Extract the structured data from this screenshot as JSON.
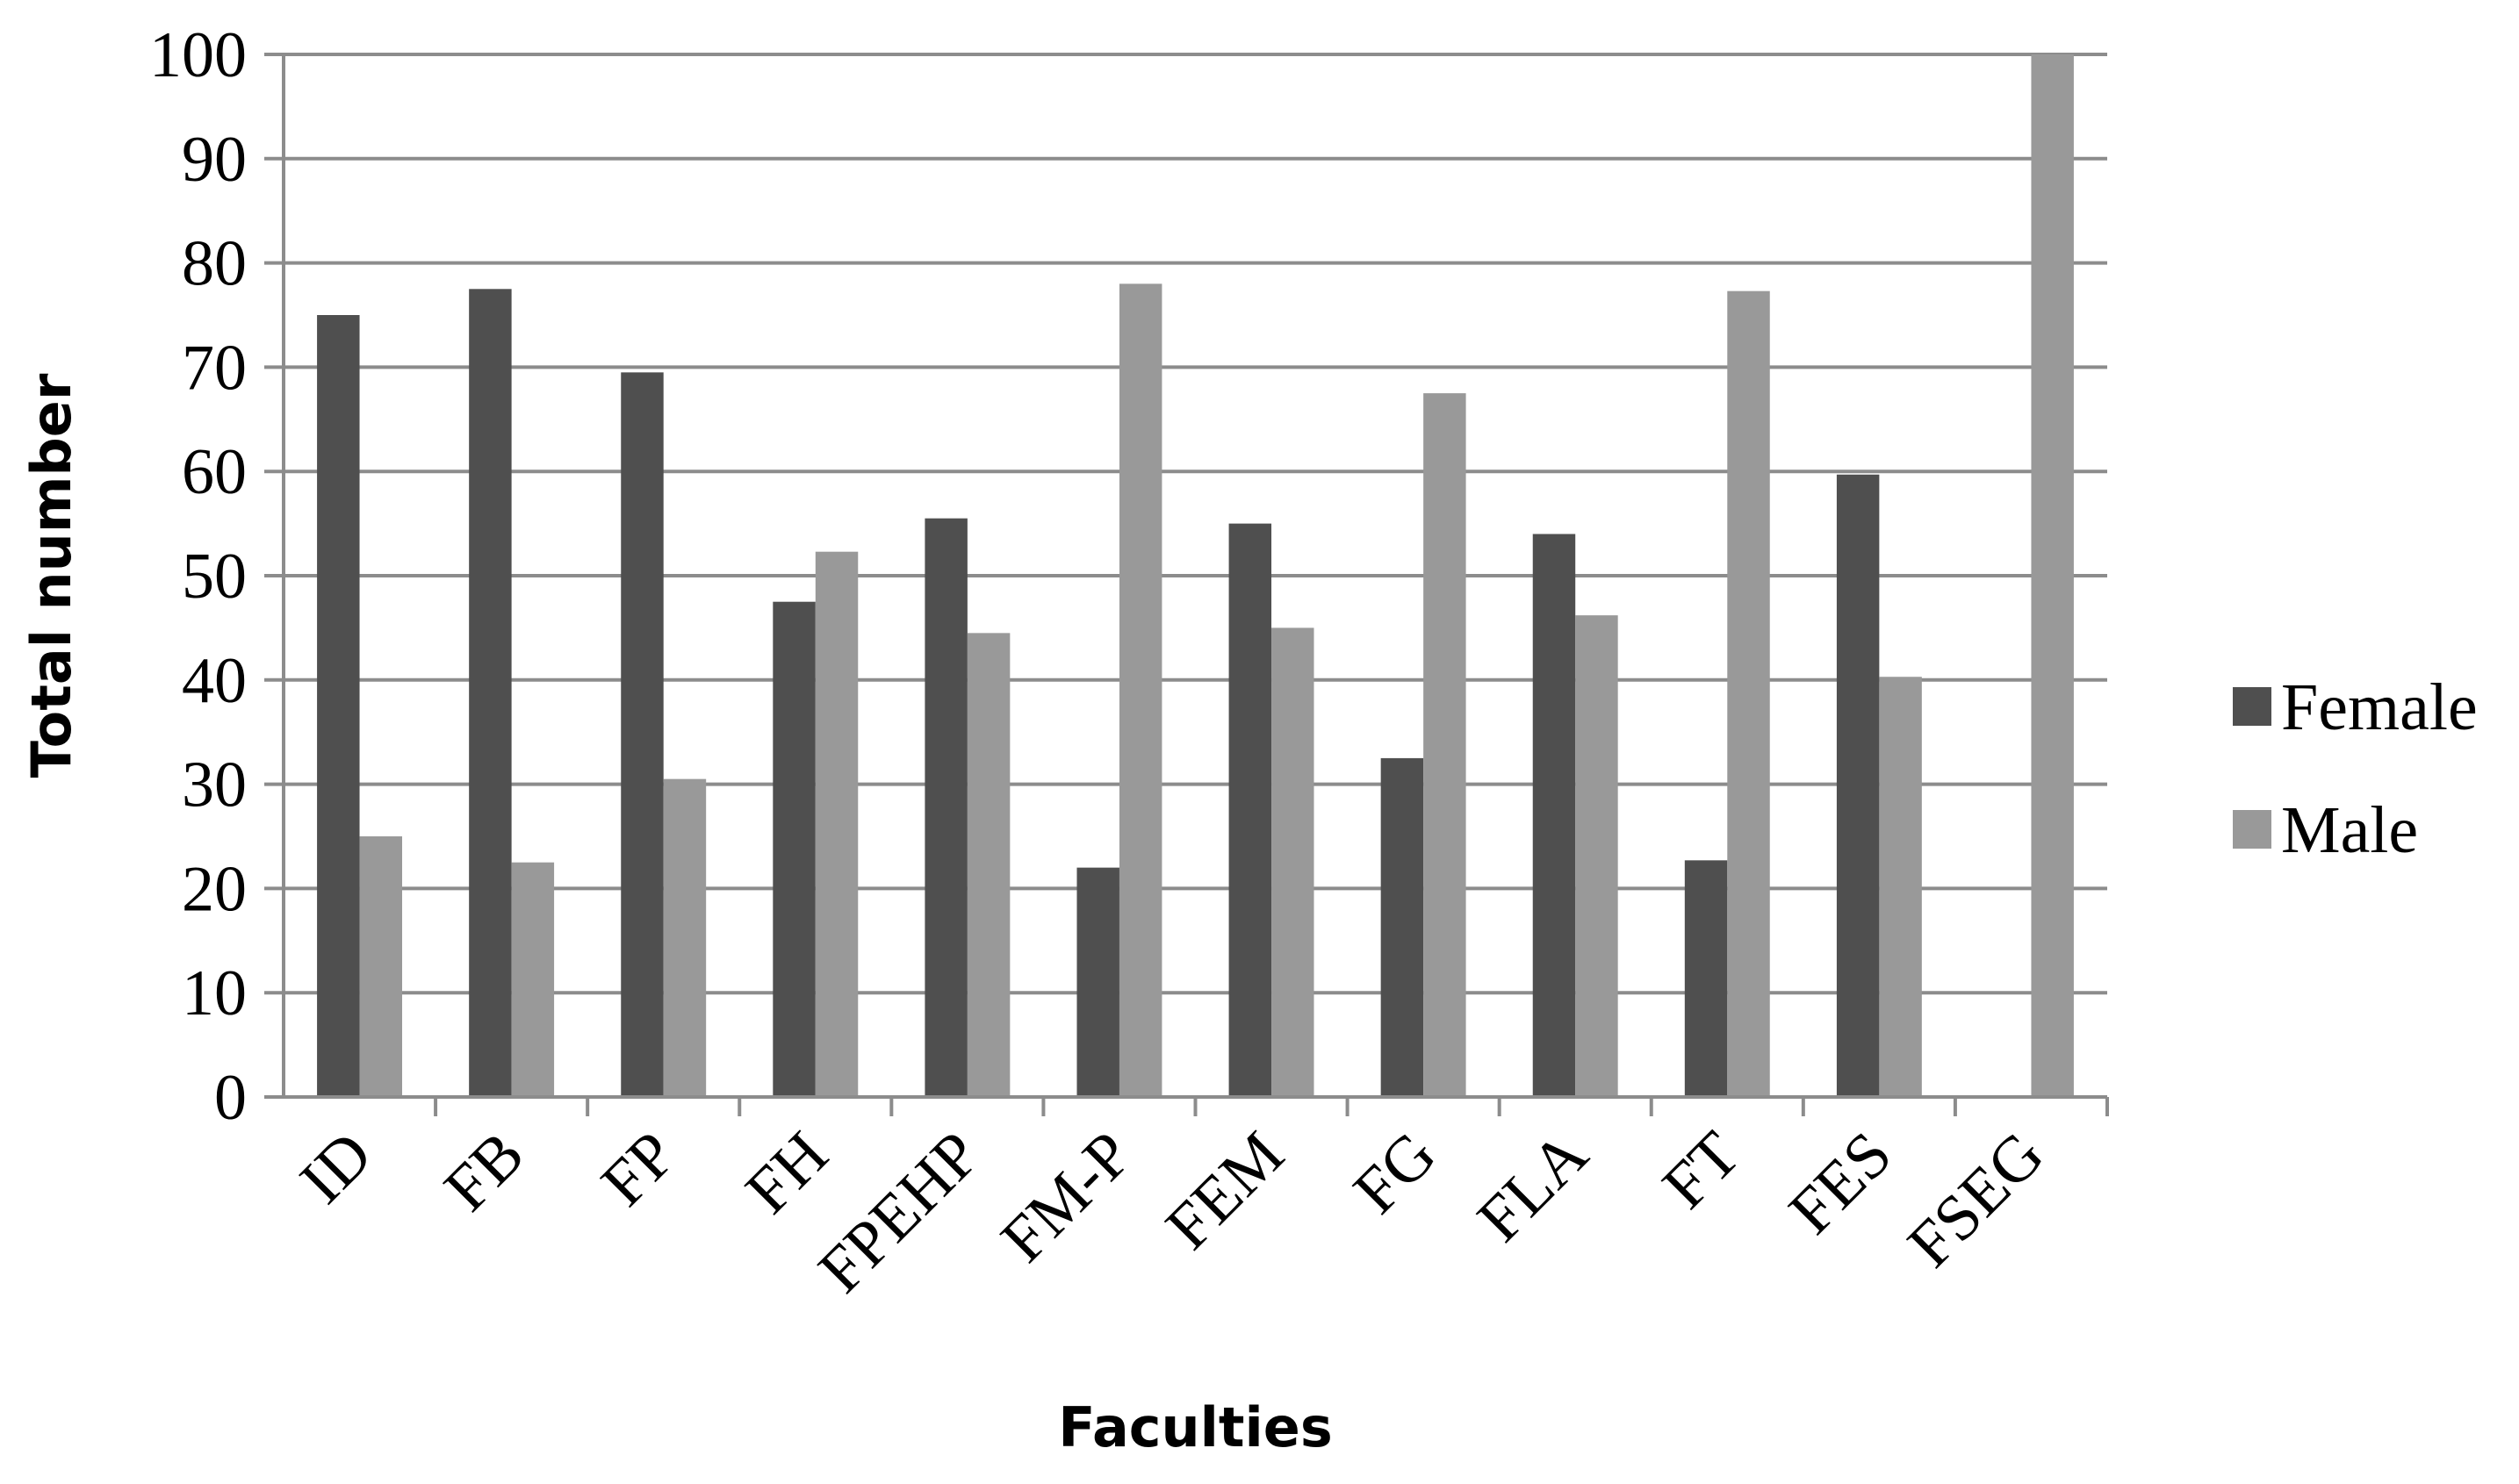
{
  "chart_data": {
    "type": "bar",
    "categories": [
      "ID",
      "FB",
      "FP",
      "FH",
      "FPEHP",
      "FM-P",
      "FEM",
      "FG",
      "FLA",
      "FT",
      "FES",
      "FSEG"
    ],
    "series": [
      {
        "name": "Female",
        "values": [
          75,
          77.5,
          69.5,
          47.5,
          55.5,
          22,
          55,
          32.5,
          54,
          22.7,
          59.7,
          0
        ],
        "color": "#4f4f4f"
      },
      {
        "name": "Male",
        "values": [
          25,
          22.5,
          30.5,
          52.3,
          44.5,
          78,
          45,
          67.5,
          46.2,
          77.3,
          40.3,
          100
        ],
        "color": "#999999"
      }
    ],
    "xlabel": "Faculties",
    "ylabel": "Total number",
    "ylim": [
      0,
      100
    ],
    "yticks": [
      "0",
      "10",
      "20",
      "30",
      "40",
      "50",
      "60",
      "70",
      "80",
      "90",
      "100"
    ],
    "grid": true,
    "legend_position": "right"
  }
}
